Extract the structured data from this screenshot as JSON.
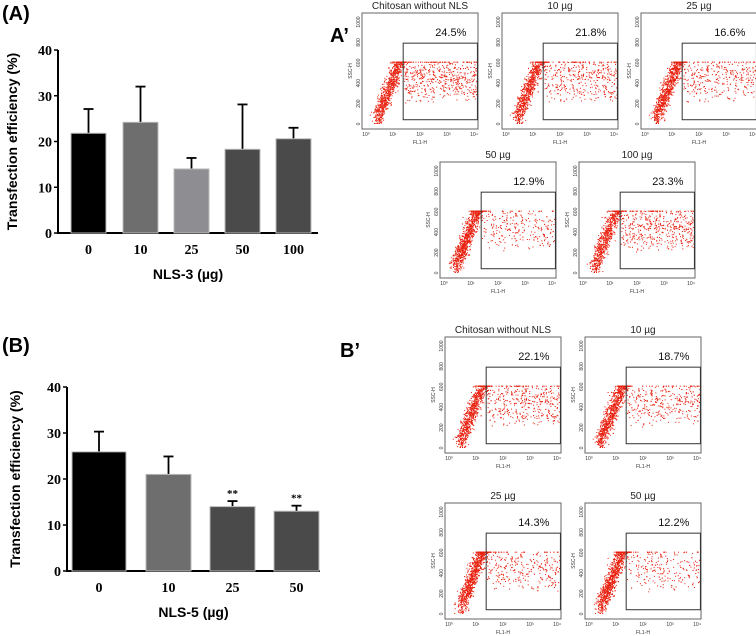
{
  "panel_labels": {
    "A": "(A)",
    "A_prime": "A’",
    "B": "(B)",
    "B_prime": "B’"
  },
  "chart_data": [
    {
      "type": "bar",
      "id": "A",
      "ylabel": "Transfection efficiency (%)",
      "xlabel": "NLS-3 (µg)",
      "categories": [
        "0",
        "10",
        "25",
        "50",
        "100"
      ],
      "values": [
        21.8,
        24.2,
        14.0,
        18.3,
        20.6
      ],
      "errors": [
        5.3,
        7.8,
        2.4,
        9.8,
        2.4
      ],
      "colors": [
        "#000000",
        "#6e6e6e",
        "#8e8e92",
        "#4a4a4a",
        "#4a4a4a"
      ],
      "annotations": [
        "",
        "",
        "",
        "",
        ""
      ],
      "ylim": [
        0,
        40
      ],
      "yticks": [
        "0",
        "10",
        "20",
        "30",
        "40"
      ]
    },
    {
      "type": "bar",
      "id": "B",
      "ylabel": "Transfection efficiency (%)",
      "xlabel": "NLS-5 (µg)",
      "categories": [
        "0",
        "10",
        "25",
        "50"
      ],
      "values": [
        25.9,
        21.0,
        14.0,
        13.0
      ],
      "errors": [
        4.4,
        3.9,
        1.2,
        1.2
      ],
      "colors": [
        "#000000",
        "#6e6e6e",
        "#4a4a4a",
        "#4a4a4a"
      ],
      "annotations": [
        "",
        "",
        "**",
        "**"
      ],
      "ylim": [
        0,
        40
      ],
      "yticks": [
        "0",
        "10",
        "20",
        "30",
        "40"
      ]
    },
    {
      "type": "scatter",
      "id": "flow",
      "xlabel": "FL1-H",
      "ylabel": "SSC-H",
      "xticks": [
        "10⁰",
        "10¹",
        "10²",
        "10³",
        "10⁴"
      ],
      "yticks": [
        "0",
        "200",
        "400",
        "600",
        "800",
        "1000"
      ],
      "point_color": "#e8210f",
      "plots": [
        {
          "group": "A’",
          "title": "Chitosan without NLS",
          "gated_percent": "24.5%"
        },
        {
          "group": "A’",
          "title": "10 µg",
          "gated_percent": "21.8%"
        },
        {
          "group": "A’",
          "title": "25 µg",
          "gated_percent": "16.6%"
        },
        {
          "group": "A’",
          "title": "50 µg",
          "gated_percent": "12.9%"
        },
        {
          "group": "A’",
          "title": "100 µg",
          "gated_percent": "23.3%"
        },
        {
          "group": "B’",
          "title": "Chitosan without NLS",
          "gated_percent": "22.1%"
        },
        {
          "group": "B’",
          "title": "10 µg",
          "gated_percent": "18.7%"
        },
        {
          "group": "B’",
          "title": "25 µg",
          "gated_percent": "14.3%"
        },
        {
          "group": "B’",
          "title": "50 µg",
          "gated_percent": "12.2%"
        }
      ]
    }
  ]
}
